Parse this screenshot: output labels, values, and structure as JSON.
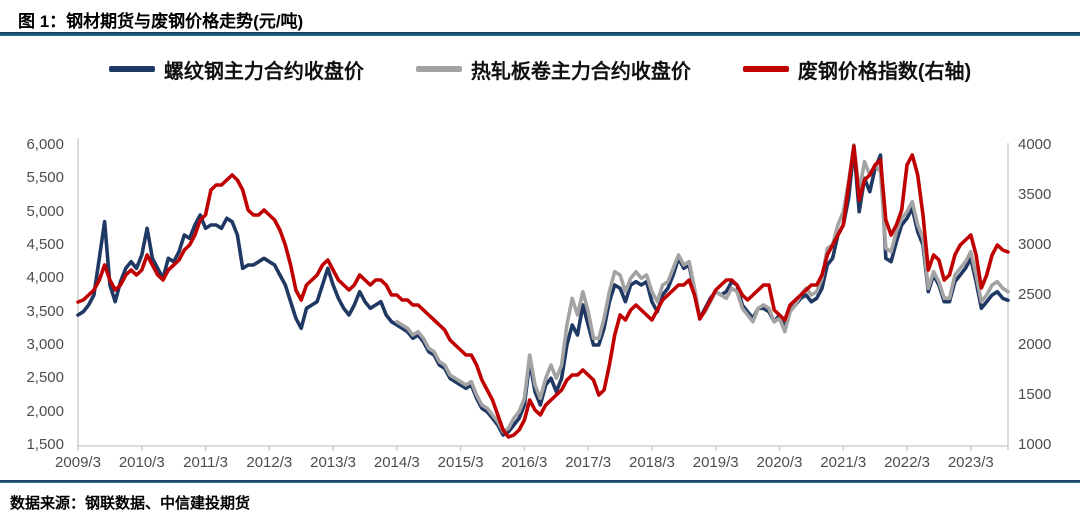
{
  "header": {
    "title": "图 1：钢材期货与废钢价格走势(元/吨)"
  },
  "footer": {
    "source_note": "数据来源：钢联数据、中信建投期货"
  },
  "colors": {
    "rebar": "#1f3864",
    "hot_rolled_coil": "#a3a3a3",
    "scrap": "#c00000",
    "axis_line": "#c8c8c8",
    "axis_text": "#4d4d4d",
    "divider": "#21607f"
  },
  "chart_data": {
    "type": "line",
    "title": "钢材期货与废钢价格走势(元/吨)",
    "interval": "monthly",
    "x_start": "2009/3",
    "x_end": "2023/10",
    "tick_month_interval": 12,
    "x_tick_labels": [
      "2009/3",
      "2010/3",
      "2011/3",
      "2012/3",
      "2013/3",
      "2014/3",
      "2015/3",
      "2016/3",
      "2017/3",
      "2018/3",
      "2019/3",
      "2020/3",
      "2021/3",
      "2022/3",
      "2023/3"
    ],
    "left_axis": {
      "min": 1500,
      "max": 6000,
      "tick_labels": [
        "6,000",
        "5,500",
        "5,000",
        "4,500",
        "4,000",
        "3,500",
        "3,000",
        "2,500",
        "2,000",
        "1,500"
      ]
    },
    "right_axis": {
      "min": 1000,
      "max": 4000,
      "tick_labels": [
        "4000",
        "3500",
        "3000",
        "2500",
        "2000",
        "1500",
        "1000"
      ]
    },
    "legend_position": "top",
    "grid": false,
    "series": [
      {
        "id": "rebar-futures-line",
        "name": "螺纹钢主力合约收盘价",
        "axis": "left",
        "color": "#1f3864",
        "start_index": 0,
        "values": [
          3450,
          3500,
          3600,
          3750,
          4300,
          4850,
          3900,
          3650,
          3950,
          4150,
          4250,
          4150,
          4350,
          4750,
          4300,
          4150,
          4000,
          4300,
          4250,
          4400,
          4650,
          4600,
          4800,
          4950,
          4750,
          4800,
          4800,
          4750,
          4900,
          4850,
          4650,
          4150,
          4200,
          4200,
          4250,
          4300,
          4250,
          4200,
          4050,
          3900,
          3650,
          3400,
          3250,
          3550,
          3600,
          3650,
          3900,
          4150,
          3900,
          3700,
          3550,
          3450,
          3600,
          3800,
          3650,
          3550,
          3600,
          3650,
          3450,
          3350,
          3300,
          3250,
          3200,
          3100,
          3150,
          3050,
          2900,
          2850,
          2700,
          2650,
          2500,
          2450,
          2400,
          2350,
          2400,
          2200,
          2050,
          2000,
          1900,
          1800,
          1650,
          1700,
          1800,
          1900,
          2100,
          2750,
          2300,
          2100,
          2400,
          2500,
          2300,
          2500,
          3000,
          3300,
          3150,
          3600,
          3300,
          3000,
          3000,
          3250,
          3650,
          3900,
          3850,
          3650,
          3900,
          3950,
          3900,
          3950,
          3650,
          3500,
          3750,
          3850,
          4050,
          4300,
          4150,
          4200,
          3800,
          3400,
          3550,
          3700,
          3800,
          3750,
          3800,
          3950,
          3900,
          3600,
          3500,
          3400,
          3550,
          3550,
          3500,
          3350,
          3450,
          3300,
          3550,
          3600,
          3700,
          3750,
          3650,
          3700,
          3850,
          4200,
          4300,
          4650,
          4800,
          5200,
          5950,
          5000,
          5500,
          5300,
          5650,
          5850,
          4300,
          4250,
          4550,
          4800,
          4900,
          5050,
          4700,
          4500,
          3800,
          4050,
          3900,
          3650,
          3650,
          3950,
          4050,
          4150,
          4300,
          3950,
          3550,
          3650,
          3750,
          3800,
          3700,
          3670
        ]
      },
      {
        "id": "hot-rolled-coil-line",
        "name": "热轧板卷主力合约收盘价",
        "axis": "left",
        "color": "#a3a3a3",
        "start_index": 60,
        "values": [
          3350,
          3300,
          3250,
          3150,
          3200,
          3100,
          2950,
          2900,
          2750,
          2700,
          2550,
          2500,
          2450,
          2400,
          2450,
          2250,
          2100,
          2050,
          1950,
          1850,
          1700,
          1750,
          1900,
          2000,
          2200,
          2850,
          2400,
          2200,
          2500,
          2700,
          2500,
          2700,
          3300,
          3700,
          3450,
          3800,
          3500,
          3100,
          3100,
          3400,
          3800,
          4100,
          4050,
          3800,
          4000,
          4100,
          4000,
          4050,
          3800,
          3650,
          3900,
          3950,
          4150,
          4350,
          4200,
          4250,
          3850,
          3400,
          3500,
          3650,
          3800,
          3750,
          3700,
          3850,
          3800,
          3550,
          3450,
          3350,
          3550,
          3600,
          3550,
          3350,
          3400,
          3200,
          3500,
          3600,
          3750,
          3850,
          3750,
          3800,
          4000,
          4450,
          4500,
          4800,
          5000,
          5450,
          6000,
          5300,
          5750,
          5550,
          5700,
          5600,
          4450,
          4400,
          4700,
          4900,
          5000,
          5150,
          4800,
          4600,
          3850,
          4100,
          3950,
          3700,
          3700,
          4050,
          4150,
          4250,
          4400,
          4050,
          3650,
          3750,
          3900,
          3950,
          3850,
          3800
        ]
      },
      {
        "id": "scrap-price-index-line",
        "name": "废钢价格指数(右轴)",
        "axis": "right",
        "color": "#c00000",
        "start_index": 0,
        "values": [
          2430,
          2450,
          2500,
          2550,
          2650,
          2800,
          2650,
          2550,
          2600,
          2700,
          2750,
          2700,
          2750,
          2900,
          2800,
          2700,
          2650,
          2750,
          2800,
          2850,
          2950,
          3000,
          3100,
          3250,
          3300,
          3550,
          3600,
          3600,
          3650,
          3700,
          3650,
          3550,
          3350,
          3300,
          3300,
          3350,
          3300,
          3250,
          3150,
          3000,
          2800,
          2550,
          2450,
          2600,
          2650,
          2700,
          2800,
          2850,
          2750,
          2650,
          2600,
          2550,
          2600,
          2700,
          2650,
          2600,
          2650,
          2650,
          2600,
          2500,
          2500,
          2450,
          2450,
          2400,
          2400,
          2350,
          2300,
          2250,
          2200,
          2150,
          2050,
          2000,
          1950,
          1900,
          1900,
          1800,
          1650,
          1550,
          1450,
          1300,
          1150,
          1080,
          1100,
          1150,
          1250,
          1450,
          1350,
          1300,
          1400,
          1450,
          1500,
          1550,
          1650,
          1700,
          1700,
          1750,
          1700,
          1650,
          1500,
          1550,
          1800,
          2100,
          2300,
          2250,
          2350,
          2400,
          2350,
          2300,
          2250,
          2350,
          2450,
          2500,
          2550,
          2600,
          2600,
          2650,
          2500,
          2260,
          2350,
          2450,
          2550,
          2600,
          2650,
          2650,
          2600,
          2500,
          2450,
          2500,
          2550,
          2600,
          2600,
          2350,
          2300,
          2250,
          2400,
          2450,
          2500,
          2550,
          2600,
          2600,
          2700,
          2900,
          3000,
          3100,
          3200,
          3600,
          3990,
          3450,
          3650,
          3700,
          3800,
          3850,
          3250,
          3100,
          3200,
          3350,
          3800,
          3900,
          3700,
          3300,
          2750,
          2900,
          2850,
          2650,
          2700,
          2900,
          3000,
          3050,
          3100,
          2900,
          2570,
          2700,
          2900,
          3000,
          2950,
          2930
        ]
      }
    ]
  }
}
